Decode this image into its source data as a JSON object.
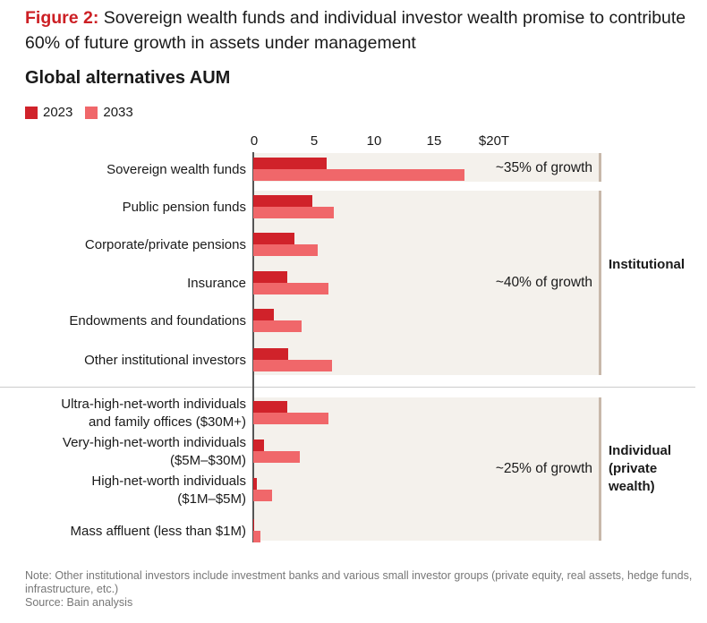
{
  "header": {
    "figure_label": "Figure 2:",
    "title": "Sovereign wealth funds and individual investor wealth promise to contribute 60% of future growth in assets under management"
  },
  "chart_data": {
    "type": "bar",
    "orientation": "horizontal",
    "title": "Global alternatives AUM",
    "xlim": [
      0,
      20
    ],
    "ticks": [
      "0",
      "5",
      "10",
      "15",
      "$20T"
    ],
    "tick_values": [
      0,
      5,
      10,
      15,
      20
    ],
    "categories": [
      "Sovereign wealth funds",
      "Public pension funds",
      "Corporate/private pensions",
      "Insurance",
      "Endowments and foundations",
      "Other institutional investors",
      "Ultra-high-net-worth individuals and family offices ($30M+)",
      "Very-high-net-worth individuals ($5M–$30M)",
      "High-net-worth individuals ($1M–$5M)",
      "Mass affluent (less than $1M)"
    ],
    "category_lines": [
      [
        "Sovereign wealth funds"
      ],
      [
        "Public pension funds"
      ],
      [
        "Corporate/private pensions"
      ],
      [
        "Insurance"
      ],
      [
        "Endowments and foundations"
      ],
      [
        "Other institutional investors"
      ],
      [
        "Ultra-high-net-worth individuals",
        "and family offices ($30M+)"
      ],
      [
        "Very-high-net-worth individuals",
        "($5M–$30M)"
      ],
      [
        "High-net-worth individuals",
        "($1M–$5M)"
      ],
      [
        "Mass affluent (less than $1M)"
      ]
    ],
    "series": [
      {
        "name": "2023",
        "color": "#d0222a",
        "values": [
          6.1,
          4.9,
          3.4,
          2.8,
          1.7,
          2.9,
          2.8,
          0.9,
          0.3,
          0.05
        ]
      },
      {
        "name": "2033",
        "color": "#f0676a",
        "values": [
          17.6,
          6.7,
          5.4,
          6.3,
          4.0,
          6.6,
          6.3,
          3.9,
          1.6,
          0.6
        ]
      }
    ],
    "annotations": [
      "~35% of growth",
      "~40% of growth",
      "~25% of growth"
    ],
    "groups": [
      "Institutional",
      "Individual (private wealth)"
    ],
    "group_lines": [
      [
        "Institutional"
      ],
      [
        "Individual",
        "(private",
        "wealth)"
      ]
    ],
    "legend": "top-left"
  },
  "footer": {
    "note": "Note: Other institutional investors include investment banks and various small investor groups (private equity, real assets, hedge funds, infrastructure, etc.)",
    "source": "Source: Bain analysis"
  }
}
